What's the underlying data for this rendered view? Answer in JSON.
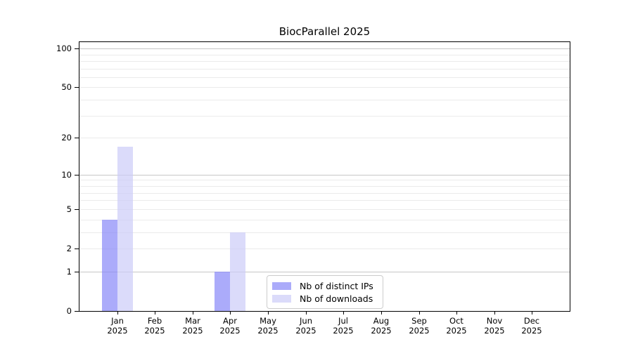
{
  "title": "BiocParallel 2025",
  "legend": {
    "items": [
      {
        "label": "Nb of distinct IPs"
      },
      {
        "label": "Nb of downloads"
      }
    ]
  },
  "chart_data": {
    "type": "bar",
    "title": "BiocParallel 2025",
    "months": [
      "Jan",
      "Feb",
      "Mar",
      "Apr",
      "May",
      "Jun",
      "Jul",
      "Aug",
      "Sep",
      "Oct",
      "Nov",
      "Dec"
    ],
    "year": "2025",
    "series": [
      {
        "name": "Nb of distinct IPs",
        "color": "rgba(136,136,248,0.7)",
        "values": [
          4,
          0,
          0,
          1,
          0,
          0,
          0,
          0,
          0,
          0,
          0,
          0
        ]
      },
      {
        "name": "Nb of downloads",
        "color": "rgba(204,204,248,0.7)",
        "values": [
          17,
          0,
          0,
          3,
          0,
          0,
          0,
          0,
          0,
          0,
          0,
          0
        ]
      }
    ],
    "yscale": "log1p",
    "ylim": [
      0,
      112
    ],
    "yticks": [
      0,
      1,
      2,
      5,
      10,
      20,
      50,
      100
    ],
    "gridlines_minor": [
      2,
      3,
      4,
      5,
      6,
      7,
      8,
      9,
      20,
      30,
      40,
      50,
      60,
      70,
      80,
      90
    ],
    "gridlines_major": [
      1,
      10,
      100
    ],
    "grid": true,
    "legend_position": "inside-bottom-center",
    "colors": {
      "grid_minor": "#ebebeb",
      "grid_major": "#c6c6c6",
      "spine": "#000000",
      "text": "#000000",
      "legend_border": "#cccccc"
    }
  }
}
